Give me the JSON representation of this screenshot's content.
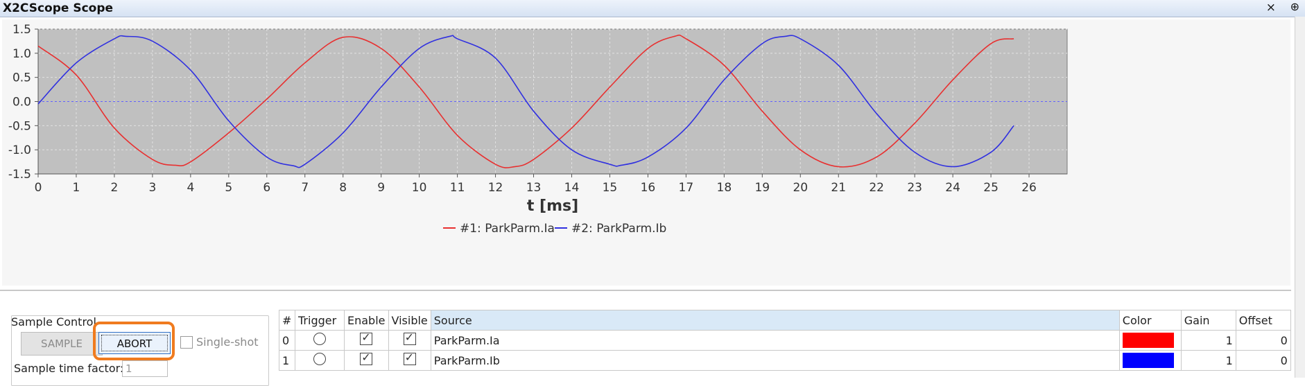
{
  "window": {
    "title": "X2CScope Scope",
    "close_glyph": "×",
    "pin_glyph": "⊕"
  },
  "plot": {
    "xlabel": "t [ms]",
    "legend": [
      {
        "label": "#1: ParkParm.Ia",
        "color": "#e83030"
      },
      {
        "label": "#2: ParkParm.Ib",
        "color": "#3030e0"
      }
    ]
  },
  "chart_data": {
    "type": "line",
    "xlabel": "t [ms]",
    "ylabel": "",
    "xlim": [
      0,
      27
    ],
    "ylim": [
      -1.5,
      1.5
    ],
    "xticks": [
      0,
      1,
      2,
      3,
      4,
      5,
      6,
      7,
      8,
      9,
      10,
      11,
      12,
      13,
      14,
      15,
      16,
      17,
      18,
      19,
      20,
      21,
      22,
      23,
      24,
      25,
      26
    ],
    "yticks": [
      1.5,
      1.0,
      0.5,
      0.0,
      -0.5,
      -1.0,
      -1.5
    ],
    "grid": true,
    "legend_position": "bottom",
    "series": [
      {
        "name": "#1: ParkParm.Ia",
        "color": "#e83030",
        "x": [
          0,
          1,
          2,
          3,
          3.6,
          4,
          5,
          6,
          7,
          8,
          9,
          10,
          11,
          12,
          12.5,
          13,
          14,
          15,
          16,
          16.7,
          17,
          18,
          19,
          20,
          21,
          22,
          23,
          24,
          25,
          25.6
        ],
        "y": [
          1.15,
          0.55,
          -0.55,
          -1.2,
          -1.32,
          -1.25,
          -0.65,
          0.05,
          0.8,
          1.33,
          1.1,
          0.3,
          -0.7,
          -1.3,
          -1.35,
          -1.2,
          -0.55,
          0.3,
          1.1,
          1.35,
          1.3,
          0.75,
          -0.2,
          -1.0,
          -1.35,
          -1.15,
          -0.45,
          0.45,
          1.2,
          1.3
        ]
      },
      {
        "name": "#2: ParkParm.Ib",
        "color": "#3030e0",
        "x": [
          0,
          1,
          2,
          2.3,
          3,
          4,
          5,
          6,
          6.7,
          7,
          8,
          9,
          10,
          10.8,
          11,
          12,
          13,
          14,
          15,
          15.3,
          16,
          17,
          18,
          19,
          19.6,
          20,
          21,
          22,
          23,
          24,
          25,
          25.6
        ],
        "y": [
          -0.05,
          0.8,
          1.3,
          1.35,
          1.25,
          0.65,
          -0.4,
          -1.15,
          -1.33,
          -1.3,
          -0.65,
          0.3,
          1.1,
          1.35,
          1.3,
          0.9,
          -0.2,
          -1.0,
          -1.3,
          -1.32,
          -1.15,
          -0.55,
          0.45,
          1.2,
          1.35,
          1.3,
          0.75,
          -0.25,
          -1.05,
          -1.35,
          -1.05,
          -0.5
        ]
      }
    ]
  },
  "sample_control": {
    "title": "Sample Control",
    "sample_label": "SAMPLE",
    "abort_label": "ABORT",
    "single_shot_label": "Single-shot",
    "single_shot_checked": false,
    "sample_time_factor_label": "Sample time factor:",
    "sample_time_factor_value": "1"
  },
  "channels": {
    "headers": [
      "#",
      "Trigger",
      "Enable",
      "Visible",
      "Source",
      "Color",
      "Gain",
      "Offset"
    ],
    "rows": [
      {
        "index": "0",
        "trigger": false,
        "enable": true,
        "visible": true,
        "source": "ParkParm.Ia",
        "color": "#ff0000",
        "gain": "1",
        "offset": "0"
      },
      {
        "index": "1",
        "trigger": false,
        "enable": true,
        "visible": true,
        "source": "ParkParm.Ib",
        "color": "#0000ff",
        "gain": "1",
        "offset": "0"
      }
    ]
  }
}
